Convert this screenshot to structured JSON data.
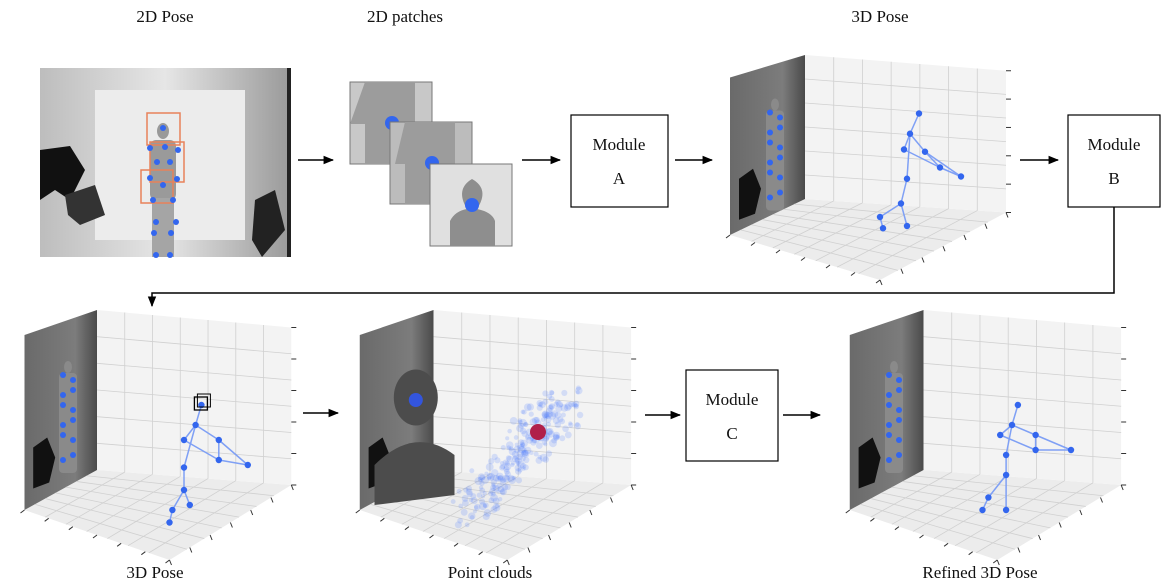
{
  "top_labels": [
    "2D Pose",
    "2D patches",
    "3D Pose"
  ],
  "bottom_labels": [
    "3D Pose",
    "Point clouds",
    "Refined 3D Pose"
  ],
  "modules": [
    [
      "Module",
      "A"
    ],
    [
      "Module",
      "B"
    ],
    [
      "Module",
      "C"
    ]
  ]
}
